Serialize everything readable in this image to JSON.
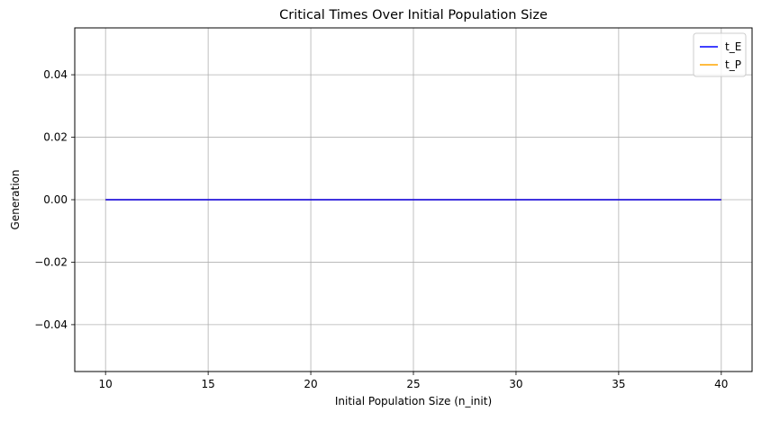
{
  "chart_data": {
    "type": "line",
    "title": "Critical Times Over Initial Population Size",
    "xlabel": "Initial Population Size (n_init)",
    "ylabel": "Generation",
    "xlim": [
      8.5,
      41.5
    ],
    "ylim": [
      -0.055,
      0.055
    ],
    "xticks": [
      10,
      15,
      20,
      25,
      30,
      35,
      40
    ],
    "yticks": [
      -0.04,
      -0.02,
      0.0,
      0.02,
      0.04
    ],
    "ytick_labels": [
      "−0.04",
      "−0.02",
      "0.00",
      "0.02",
      "0.04"
    ],
    "grid": true,
    "legend_position": "top-right",
    "series": [
      {
        "name": "t_E",
        "color": "#0000ff",
        "x": [
          10,
          40
        ],
        "y": [
          0,
          0
        ]
      },
      {
        "name": "t_P",
        "color": "#ffa500",
        "x": [
          10,
          40
        ],
        "y": [
          0,
          0
        ]
      }
    ]
  }
}
